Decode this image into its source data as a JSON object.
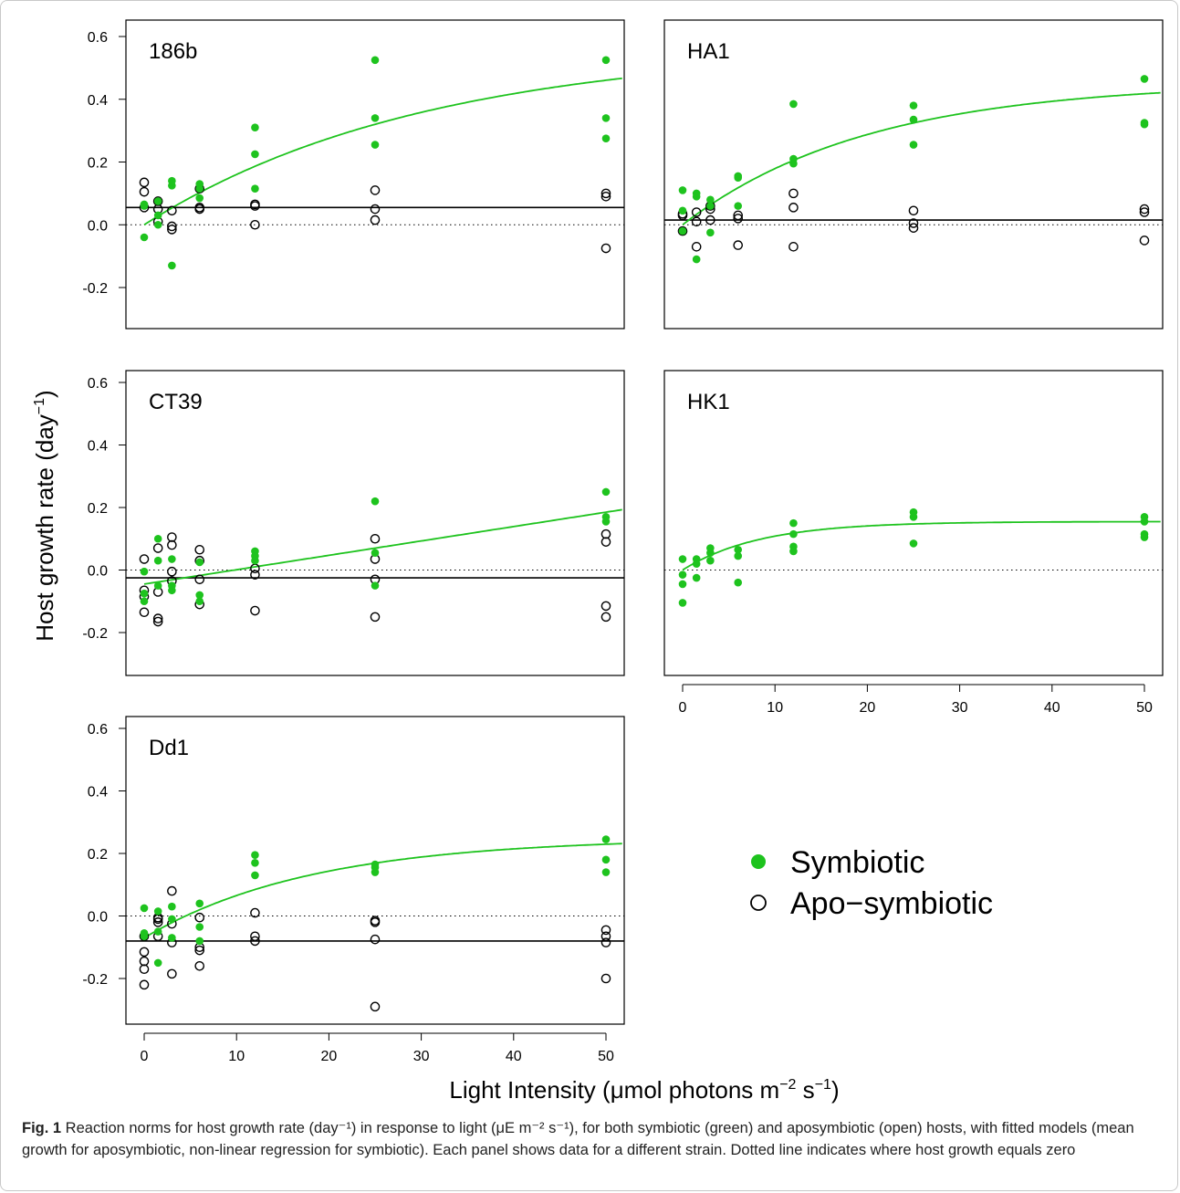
{
  "figure": {
    "y_axis_title": "Host growth rate (day",
    "y_axis_title_sup": "−1",
    "y_axis_title_end": ")",
    "x_axis_title_a": "Light Intensity (μmol photons m",
    "x_axis_title_sup1": "−2",
    "x_axis_title_b": " s",
    "x_axis_title_sup2": "−1",
    "x_axis_title_c": ")",
    "legend": [
      {
        "label": "Symbiotic",
        "marker": "filled-circle",
        "color": "#1ec31e"
      },
      {
        "label": "Apo−symbiotic",
        "marker": "open-circle",
        "color": "#000000"
      }
    ],
    "colors": {
      "symbiotic": "#1ec31e",
      "apo": "#000000"
    }
  },
  "chart_data": [
    {
      "type": "scatter",
      "title": "186b",
      "xlim": [
        0,
        50
      ],
      "ylim": [
        -0.33,
        0.6
      ],
      "yticks": [
        "-0.2",
        "0.0",
        "0.2",
        "0.4",
        "0.6"
      ],
      "xticks": [],
      "symbiotic": {
        "x": [
          0,
          0,
          0,
          1.5,
          1.5,
          1.5,
          3,
          3,
          3,
          6,
          6,
          6,
          12,
          12,
          12,
          25,
          25,
          25,
          50,
          50,
          50
        ],
        "y": [
          0.06,
          -0.04,
          0.065,
          0.075,
          0.0,
          0.03,
          0.14,
          0.125,
          -0.13,
          0.13,
          0.115,
          0.085,
          0.31,
          0.225,
          0.115,
          0.525,
          0.34,
          0.255,
          0.525,
          0.34,
          0.275
        ]
      },
      "apo": {
        "x": [
          0,
          0,
          0,
          1.5,
          1.5,
          1.5,
          3,
          3,
          3,
          6,
          6,
          6,
          12,
          12,
          12,
          25,
          25,
          25,
          50,
          50,
          50
        ],
        "y": [
          0.135,
          0.105,
          0.055,
          0.075,
          0.05,
          0.01,
          0.045,
          -0.005,
          -0.015,
          0.115,
          0.055,
          0.05,
          0.065,
          0.06,
          0.0,
          0.11,
          0.05,
          0.015,
          0.1,
          0.09,
          -0.075
        ]
      },
      "symbiotic_fit": {
        "model": "saturating",
        "ymin": 0.0,
        "ymax": 0.57,
        "k": 0.033,
        "x0": 0
      },
      "apo_mean": 0.055
    },
    {
      "type": "scatter",
      "title": "HA1",
      "xlim": [
        0,
        50
      ],
      "ylim": [
        -0.33,
        0.6
      ],
      "yticks": [],
      "xticks": [],
      "symbiotic": {
        "x": [
          0,
          0,
          0,
          1.5,
          1.5,
          1.5,
          3,
          3,
          3,
          6,
          6,
          6,
          12,
          12,
          12,
          25,
          25,
          25,
          50,
          50,
          50
        ],
        "y": [
          0.11,
          0.045,
          -0.02,
          0.1,
          0.09,
          -0.11,
          0.08,
          0.06,
          -0.025,
          0.155,
          0.15,
          0.06,
          0.385,
          0.21,
          0.195,
          0.38,
          0.335,
          0.255,
          0.465,
          0.325,
          0.32
        ]
      },
      "apo": {
        "x": [
          0,
          0,
          0,
          1.5,
          1.5,
          1.5,
          3,
          3,
          3,
          6,
          6,
          6,
          12,
          12,
          12,
          25,
          25,
          25,
          50,
          50,
          50
        ],
        "y": [
          0.035,
          0.03,
          -0.02,
          0.04,
          0.01,
          -0.07,
          0.06,
          0.05,
          0.015,
          0.03,
          0.02,
          -0.065,
          0.1,
          0.055,
          -0.07,
          0.045,
          0.005,
          -0.01,
          0.05,
          0.04,
          -0.05
        ]
      },
      "symbiotic_fit": {
        "model": "saturating",
        "ymin": 0.0,
        "ymax": 0.455,
        "k": 0.05,
        "x0": 0
      },
      "apo_mean": 0.015
    },
    {
      "type": "scatter",
      "title": "CT39",
      "xlim": [
        0,
        50
      ],
      "ylim": [
        -0.33,
        0.6
      ],
      "yticks": [
        "-0.2",
        "0.0",
        "0.2",
        "0.4",
        "0.6"
      ],
      "xticks": [],
      "symbiotic": {
        "x": [
          0,
          0,
          0,
          1.5,
          1.5,
          1.5,
          3,
          3,
          3,
          6,
          6,
          6,
          12,
          12,
          12,
          25,
          25,
          25,
          50,
          50,
          50
        ],
        "y": [
          -0.005,
          -0.075,
          -0.1,
          0.1,
          0.03,
          -0.05,
          0.035,
          -0.05,
          -0.065,
          0.025,
          -0.08,
          -0.1,
          0.06,
          0.045,
          0.03,
          0.22,
          0.055,
          -0.05,
          0.25,
          0.17,
          0.155
        ]
      },
      "apo": {
        "x": [
          0,
          0,
          0,
          0,
          1.5,
          1.5,
          1.5,
          1.5,
          3,
          3,
          3,
          3,
          6,
          6,
          6,
          6,
          12,
          12,
          12,
          25,
          25,
          25,
          25,
          50,
          50,
          50,
          50
        ],
        "y": [
          0.035,
          -0.065,
          -0.085,
          -0.135,
          0.07,
          -0.07,
          -0.155,
          -0.165,
          0.105,
          0.08,
          -0.005,
          -0.035,
          0.065,
          0.03,
          -0.03,
          -0.11,
          0.005,
          -0.015,
          -0.13,
          0.1,
          0.035,
          -0.03,
          -0.15,
          0.115,
          0.09,
          -0.115,
          -0.15
        ]
      },
      "symbiotic_fit": {
        "model": "linear",
        "y0": -0.045,
        "slope": 0.0046
      },
      "apo_mean": -0.025
    },
    {
      "type": "scatter",
      "title": "HK1",
      "xlim": [
        0,
        50
      ],
      "ylim": [
        -0.33,
        0.6
      ],
      "yticks": [],
      "xticks": [
        "0",
        "10",
        "20",
        "30",
        "40",
        "50"
      ],
      "symbiotic": {
        "x": [
          0,
          0,
          0,
          0,
          1.5,
          1.5,
          1.5,
          3,
          3,
          3,
          6,
          6,
          6,
          12,
          12,
          12,
          12,
          25,
          25,
          25,
          50,
          50,
          50,
          50
        ],
        "y": [
          0.035,
          -0.015,
          -0.045,
          -0.105,
          0.035,
          0.02,
          -0.025,
          0.07,
          0.055,
          0.03,
          0.065,
          0.045,
          -0.04,
          0.15,
          0.115,
          0.075,
          0.06,
          0.185,
          0.17,
          0.085,
          0.17,
          0.155,
          0.115,
          0.105
        ]
      },
      "apo": {
        "x": [],
        "y": []
      },
      "symbiotic_fit": {
        "model": "saturating",
        "ymin": 0.0,
        "ymax": 0.155,
        "k": 0.12,
        "x0": 0
      },
      "apo_mean": null
    },
    {
      "type": "scatter",
      "title": "Dd1",
      "xlim": [
        0,
        50
      ],
      "ylim": [
        -0.33,
        0.6
      ],
      "yticks": [
        "-0.2",
        "0.0",
        "0.2",
        "0.4",
        "0.6"
      ],
      "xticks": [
        "0",
        "10",
        "20",
        "30",
        "40",
        "50"
      ],
      "symbiotic": {
        "x": [
          0,
          0,
          0,
          1.5,
          1.5,
          1.5,
          3,
          3,
          3,
          6,
          6,
          6,
          12,
          12,
          12,
          25,
          25,
          25,
          50,
          50,
          50
        ],
        "y": [
          0.025,
          -0.055,
          -0.065,
          0.015,
          -0.05,
          -0.15,
          0.03,
          -0.01,
          -0.07,
          0.04,
          -0.035,
          -0.08,
          0.195,
          0.17,
          0.13,
          0.165,
          0.155,
          0.14,
          0.245,
          0.18,
          0.14
        ]
      },
      "apo": {
        "x": [
          0,
          0,
          0,
          0,
          0,
          1.5,
          1.5,
          1.5,
          1.5,
          3,
          3,
          3,
          3,
          6,
          6,
          6,
          6,
          12,
          12,
          12,
          25,
          25,
          25,
          25,
          50,
          50,
          50,
          50
        ],
        "y": [
          -0.115,
          -0.145,
          -0.17,
          -0.22,
          -0.065,
          -0.005,
          -0.02,
          -0.065,
          -0.01,
          0.08,
          -0.025,
          -0.085,
          -0.185,
          -0.005,
          -0.1,
          -0.11,
          -0.16,
          0.01,
          -0.065,
          -0.08,
          -0.015,
          -0.02,
          -0.075,
          -0.29,
          -0.045,
          -0.065,
          -0.085,
          -0.2
        ]
      },
      "symbiotic_fit": {
        "model": "saturating",
        "ymin": -0.07,
        "ymax": 0.25,
        "k": 0.055,
        "x0": 0
      },
      "apo_mean": -0.08
    }
  ],
  "caption": {
    "label": "Fig. 1",
    "text": " Reaction norms for host growth rate (day⁻¹) in response to light (μE m⁻² s⁻¹), for both symbiotic (green) and aposymbiotic (open) hosts, with fitted models (mean growth for aposymbiotic, non-linear regression for symbiotic). Each panel shows data for a different strain. Dotted line indicates where host growth equals zero"
  }
}
